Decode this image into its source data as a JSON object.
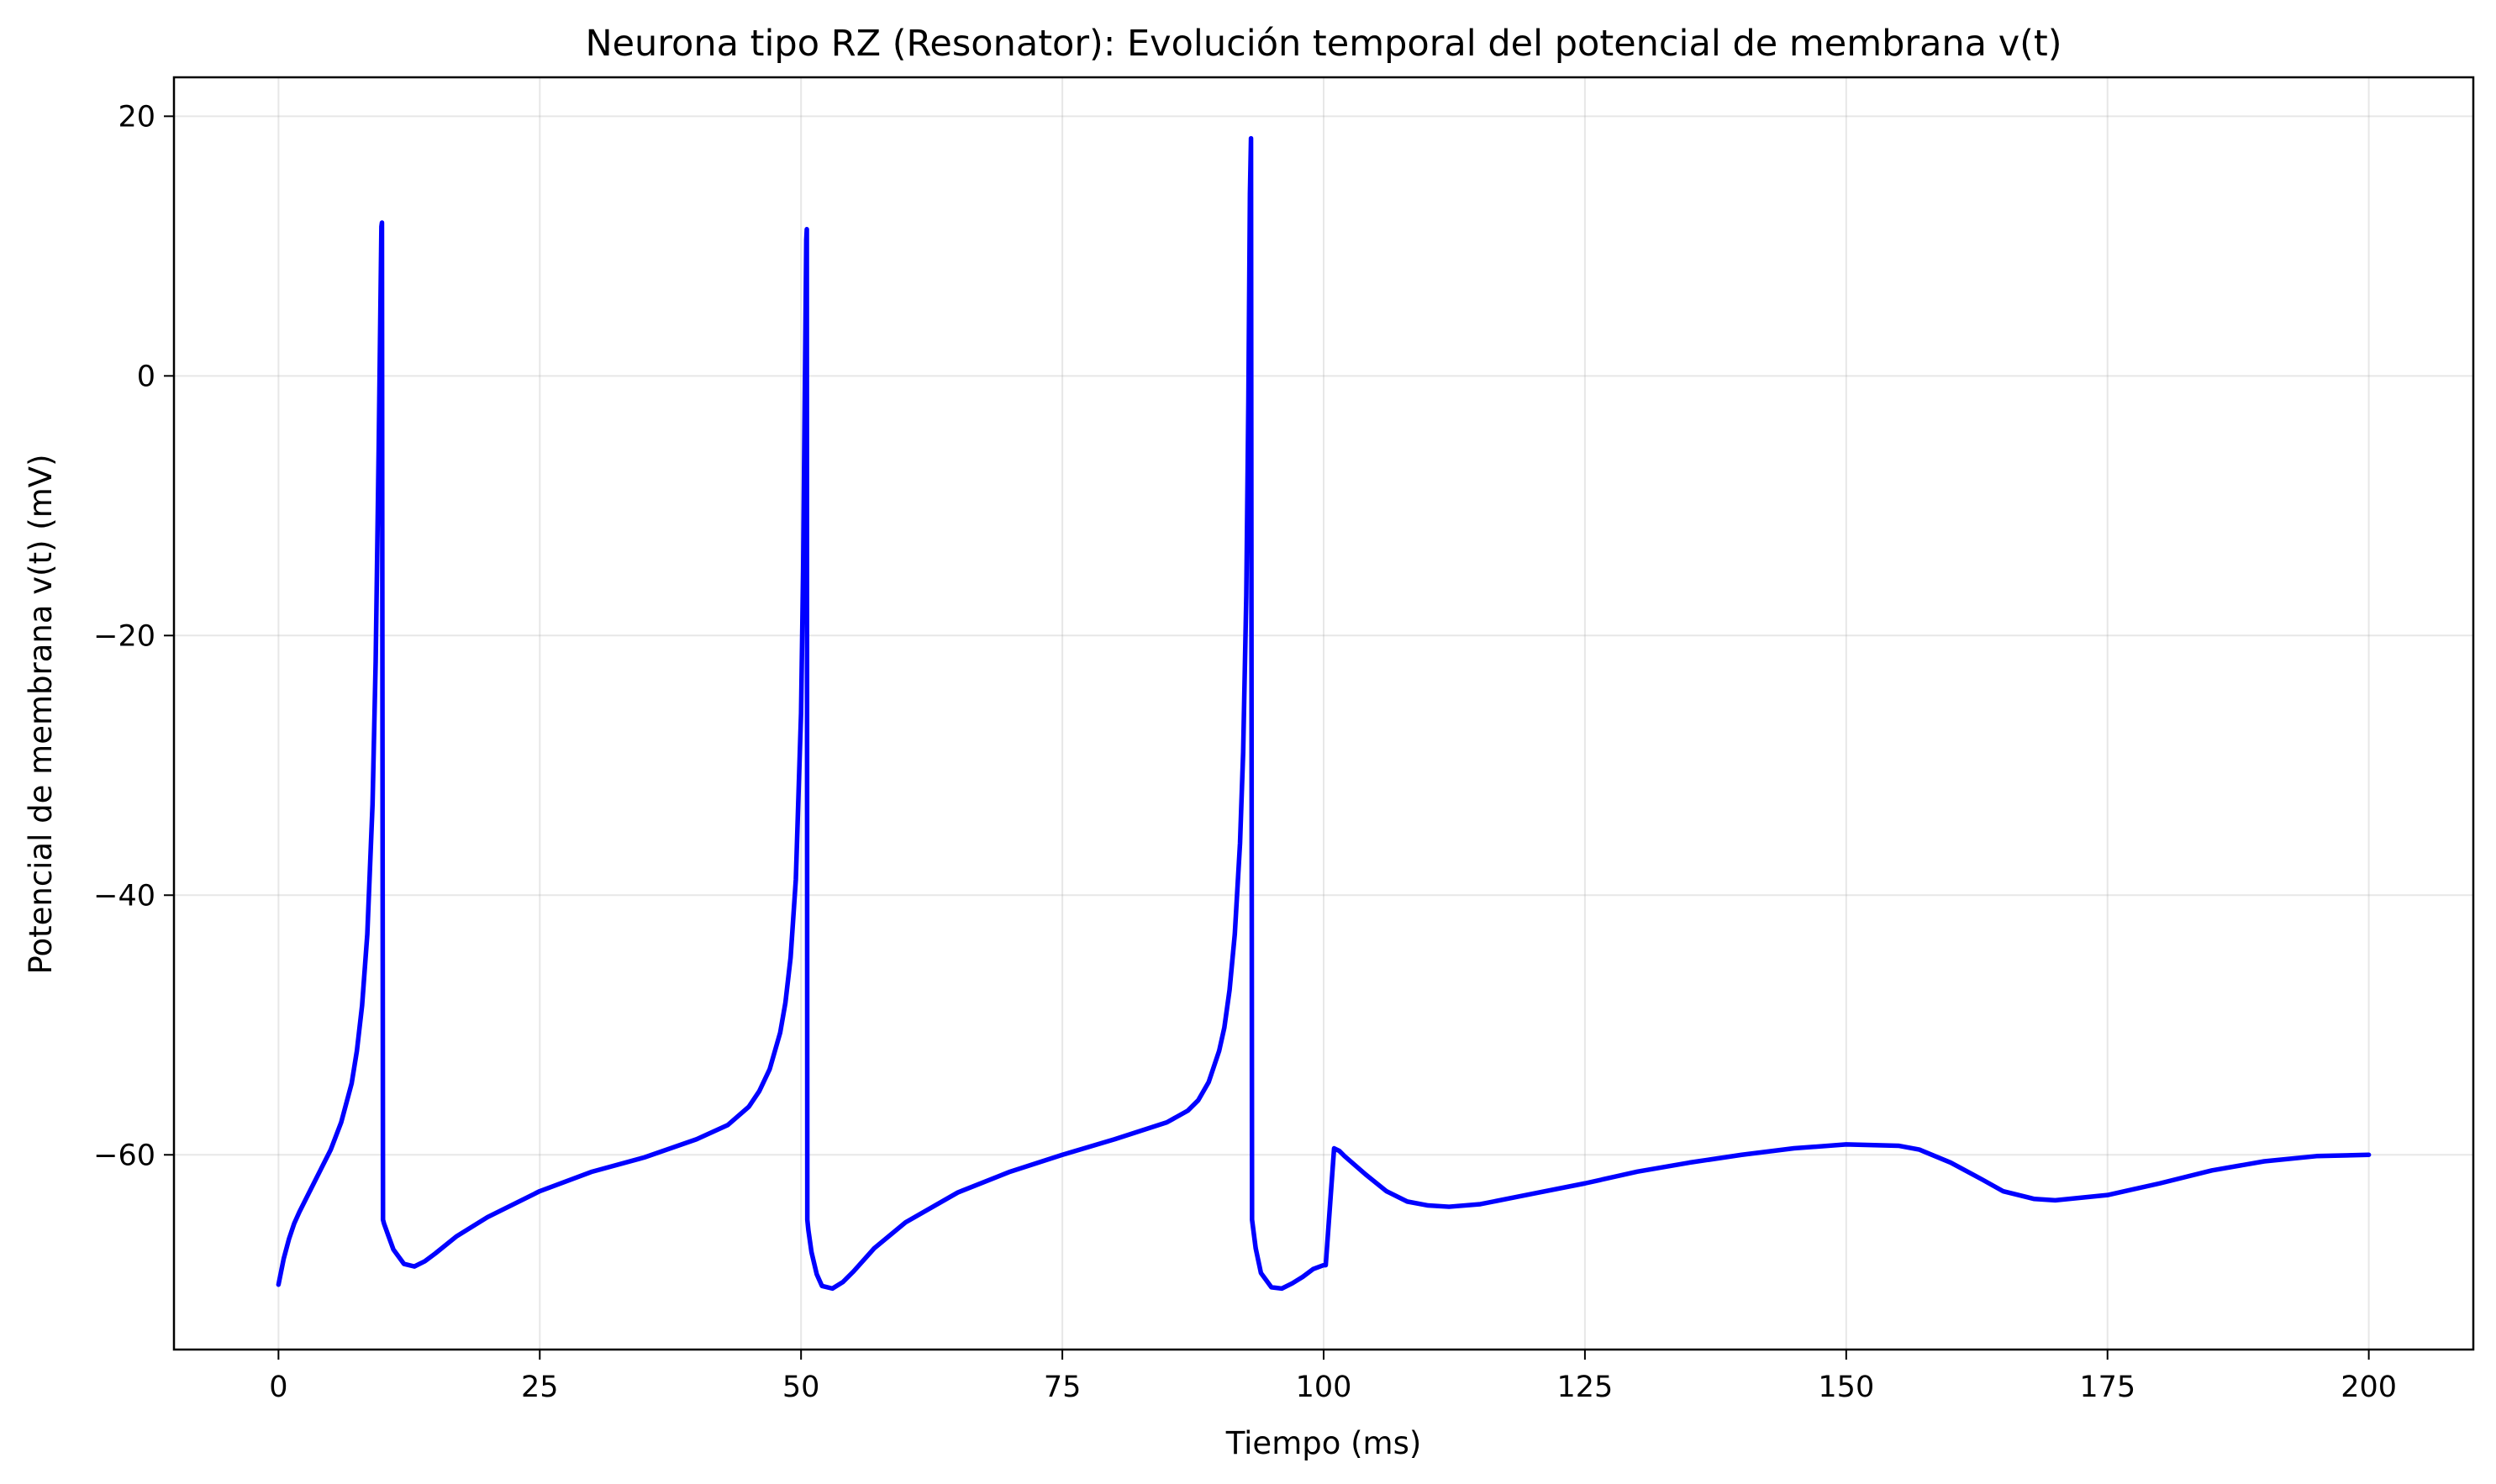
{
  "chart_data": {
    "type": "line",
    "title": "Neurona tipo RZ (Resonator): Evolución temporal del potencial de membrana v(t)",
    "xlabel": "Tiempo (ms)",
    "ylabel": "Potencial de membrana v(t) (mV)",
    "xlim": [
      -10,
      210
    ],
    "ylim": [
      -75,
      23
    ],
    "grid": true,
    "xticks": [
      0,
      25,
      50,
      75,
      100,
      125,
      150,
      175,
      200
    ],
    "xtick_labels": [
      "0",
      "25",
      "50",
      "75",
      "100",
      "125",
      "150",
      "175",
      "200"
    ],
    "yticks": [
      20,
      0,
      -20,
      -40,
      -60
    ],
    "ytick_labels": [
      "20",
      "0",
      "−20",
      "−40",
      "−60"
    ],
    "series": [
      {
        "color": "#0000ff",
        "x": [
          0,
          0.5,
          1,
          1.5,
          2,
          3,
          4,
          5,
          6,
          7,
          7.5,
          8,
          8.5,
          9,
          9.3,
          9.6,
          9.75,
          9.85,
          9.9,
          10,
          10.1,
          10.5,
          11,
          12,
          13,
          14,
          15,
          17,
          20,
          25,
          30,
          35,
          40,
          43,
          45,
          46,
          47,
          48,
          48.5,
          49,
          49.5,
          50,
          50.2,
          50.4,
          50.5,
          50.55,
          50.6,
          50.7,
          51,
          51.5,
          52,
          53,
          54,
          55,
          57,
          60,
          65,
          70,
          75,
          80,
          85,
          87,
          88,
          89,
          90,
          90.5,
          91,
          91.5,
          92,
          92.3,
          92.6,
          92.8,
          92.95,
          93.05,
          93.15,
          93.5,
          94,
          95,
          96,
          97,
          98,
          99,
          100,
          100.2,
          101,
          101.5,
          102,
          104,
          106,
          108,
          110,
          112,
          115,
          120,
          125,
          130,
          135,
          140,
          145,
          150,
          155,
          157,
          160,
          163,
          165,
          168,
          170,
          175,
          180,
          185,
          190,
          195,
          200
        ],
        "y": [
          -70,
          -68,
          -66.5,
          -65.3,
          -64.4,
          -62.8,
          -61.2,
          -59.6,
          -57.5,
          -54.5,
          -52,
          -48.5,
          -43,
          -33,
          -22,
          -5,
          5,
          11.5,
          11.8,
          -65,
          -65.3,
          -66.2,
          -67.3,
          -68.4,
          -68.6,
          -68.2,
          -67.6,
          -66.3,
          -64.8,
          -62.8,
          -61.3,
          -60.2,
          -58.8,
          -57.7,
          -56.3,
          -55.1,
          -53.4,
          -50.6,
          -48.3,
          -44.8,
          -38.8,
          -26,
          -15,
          2,
          10.5,
          11.3,
          -65,
          -65.8,
          -67.5,
          -69.2,
          -70.1,
          -70.3,
          -69.8,
          -69,
          -67.2,
          -65.2,
          -62.9,
          -61.3,
          -60,
          -58.8,
          -57.5,
          -56.6,
          -55.8,
          -54.4,
          -52,
          -50.2,
          -47.3,
          -43,
          -36,
          -29,
          -17,
          -2,
          14,
          18.3,
          -65,
          -67.2,
          -69.1,
          -70.2,
          -70.3,
          -69.9,
          -69.4,
          -68.8,
          -68.5,
          -68.5,
          -59.5,
          -59.7,
          -60.1,
          -61.5,
          -62.8,
          -63.6,
          -63.9,
          -64,
          -63.8,
          -63,
          -62.2,
          -61.3,
          -60.6,
          -60,
          -59.5,
          -59.2,
          -59.3,
          -59.6,
          -60.6,
          -61.9,
          -62.8,
          -63.4,
          -63.5,
          -63.1,
          -62.2,
          -61.2,
          -60.5,
          -60.1,
          -60
        ]
      }
    ]
  }
}
